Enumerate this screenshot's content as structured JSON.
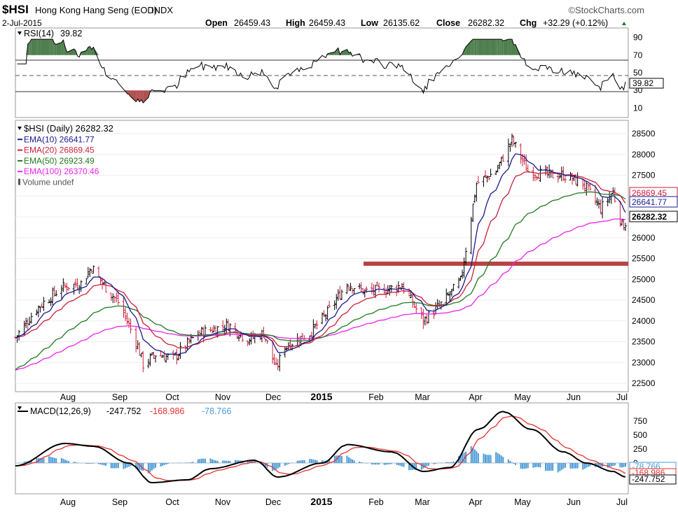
{
  "header": {
    "symbol": "$HSI",
    "name": "Hong Kong Hang Seng (EOD)",
    "exchange": "INDX",
    "brand": "©StockCharts.com",
    "date": "2-Jul-2015",
    "open_label": "Open",
    "open": "26459.43",
    "high_label": "High",
    "high": "26459.43",
    "low_label": "Low",
    "low": "26135.62",
    "close_label": "Close",
    "close": "26282.32",
    "chg_label": "Chg",
    "chg": "+32.29 (+0.12%)"
  },
  "rsi_panel": {
    "label": "RSI(14)",
    "value": "39.82",
    "ticks": [
      "90",
      "70",
      "50",
      "30",
      "10"
    ]
  },
  "price_panel": {
    "legend": [
      {
        "text": "$HSI (Daily) 26282.32",
        "color": "#000000"
      },
      {
        "text": "EMA(10) 26641.77",
        "color": "#1a1a8c"
      },
      {
        "text": "EMA(20) 26869.45",
        "color": "#cc1f3a"
      },
      {
        "text": "EMA(50) 26923.49",
        "color": "#1f7a1f"
      },
      {
        "text": "EMA(100) 26370.46",
        "color": "#ee22ee"
      },
      {
        "text": "Volume undef",
        "color": "#555555"
      }
    ],
    "y_ticks": [
      "28500",
      "28000",
      "27500",
      "27000",
      "26500",
      "26000",
      "25500",
      "25000",
      "24500",
      "24000",
      "23500",
      "23000",
      "22500"
    ],
    "tags": [
      {
        "text": "26869.45",
        "color": "#cc1f3a"
      },
      {
        "text": "26641.77",
        "color": "#1a1a8c"
      },
      {
        "text": "26282.32",
        "color": "#000000"
      }
    ]
  },
  "macd_panel": {
    "label_prefix": "MACD(12,26,9)",
    "macd": "-247.752",
    "signal": "-168.986",
    "hist": "-78.766",
    "y_ticks": [
      "750",
      "500",
      "250",
      "0"
    ],
    "tags": [
      {
        "text": "-78.766",
        "color": "#4a9ad8"
      },
      {
        "text": "-168.986",
        "color": "#e53030"
      },
      {
        "text": "-247.752",
        "color": "#000000"
      }
    ]
  },
  "x_axis_labels": [
    "Aug",
    "Sep",
    "Oct",
    "Nov",
    "Dec",
    "2015",
    "Feb",
    "Mar",
    "Apr",
    "May",
    "Jun",
    "Jul"
  ],
  "colors": {
    "ema10": "#1a1a8c",
    "ema20": "#cc1f3a",
    "ema50": "#1f7a1f",
    "ema100": "#ee22ee",
    "up": "#000000",
    "down": "#cc1f3a",
    "resistance": "#b03030",
    "rsi_fill": "#4f7f4f",
    "macd_hist": "#4a9ad8",
    "macd_line": "#000000",
    "signal_line": "#e53030"
  },
  "chart_data": {
    "type": "line",
    "title": "$HSI Hong Kong Hang Seng (EOD) INDX",
    "ylim": [
      22400,
      28700
    ],
    "y_scale": "linear",
    "x_labels": [
      "Aug",
      "Sep",
      "Oct",
      "Nov",
      "Dec",
      "2015",
      "Feb",
      "Mar",
      "Apr",
      "May",
      "Jun",
      "Jul"
    ],
    "close_series": {
      "name": "$HSI (Daily)",
      "points": [
        {
          "x": "2014-07-23",
          "y": 23600
        },
        {
          "x": "2014-08-04",
          "y": 24300
        },
        {
          "x": "2014-08-18",
          "y": 24800
        },
        {
          "x": "2014-08-29",
          "y": 24900
        },
        {
          "x": "2014-09-04",
          "y": 25300
        },
        {
          "x": "2014-09-10",
          "y": 24900
        },
        {
          "x": "2014-09-20",
          "y": 24400
        },
        {
          "x": "2014-09-30",
          "y": 23400
        },
        {
          "x": "2014-10-03",
          "y": 22950
        },
        {
          "x": "2014-10-10",
          "y": 23200
        },
        {
          "x": "2014-10-20",
          "y": 23100
        },
        {
          "x": "2014-11-03",
          "y": 23700
        },
        {
          "x": "2014-11-20",
          "y": 23900
        },
        {
          "x": "2014-12-01",
          "y": 23550
        },
        {
          "x": "2014-12-10",
          "y": 23700
        },
        {
          "x": "2014-12-17",
          "y": 22850
        },
        {
          "x": "2014-12-22",
          "y": 23400
        },
        {
          "x": "2015-01-05",
          "y": 23700
        },
        {
          "x": "2015-01-15",
          "y": 24200
        },
        {
          "x": "2015-01-26",
          "y": 24900
        },
        {
          "x": "2015-02-05",
          "y": 24700
        },
        {
          "x": "2015-02-16",
          "y": 24750
        },
        {
          "x": "2015-02-26",
          "y": 24850
        },
        {
          "x": "2015-03-10",
          "y": 24000
        },
        {
          "x": "2015-03-20",
          "y": 24400
        },
        {
          "x": "2015-03-31",
          "y": 24950
        },
        {
          "x": "2015-04-09",
          "y": 27300
        },
        {
          "x": "2015-04-20",
          "y": 27600
        },
        {
          "x": "2015-04-29",
          "y": 28350
        },
        {
          "x": "2015-05-08",
          "y": 27600
        },
        {
          "x": "2015-05-20",
          "y": 27500
        },
        {
          "x": "2015-05-28",
          "y": 27500
        },
        {
          "x": "2015-06-08",
          "y": 27300
        },
        {
          "x": "2015-06-18",
          "y": 26700
        },
        {
          "x": "2015-06-25",
          "y": 27100
        },
        {
          "x": "2015-06-30",
          "y": 26300
        },
        {
          "x": "2015-07-02",
          "y": 26282.32
        }
      ]
    },
    "series": [
      {
        "name": "EMA(10)",
        "last": 26641.77
      },
      {
        "name": "EMA(20)",
        "last": 26869.45
      },
      {
        "name": "EMA(50)",
        "last": 26923.49
      },
      {
        "name": "EMA(100)",
        "last": 26370.46
      }
    ],
    "resistance_level": 25200,
    "rsi": {
      "period": 14,
      "last": 39.82,
      "levels": [
        70,
        50,
        30
      ],
      "ylim": [
        0,
        100
      ]
    },
    "macd": {
      "params": "12,26,9",
      "macd": -247.752,
      "signal": -168.986,
      "histogram": -78.766,
      "macd_points": [
        {
          "x": "2014-07-23",
          "y": -50
        },
        {
          "x": "2014-08-20",
          "y": 350
        },
        {
          "x": "2014-09-05",
          "y": 300
        },
        {
          "x": "2014-09-25",
          "y": 0
        },
        {
          "x": "2014-10-08",
          "y": -350
        },
        {
          "x": "2014-10-28",
          "y": -300
        },
        {
          "x": "2014-11-10",
          "y": -100
        },
        {
          "x": "2014-12-05",
          "y": 50
        },
        {
          "x": "2014-12-18",
          "y": -250
        },
        {
          "x": "2015-01-12",
          "y": 0
        },
        {
          "x": "2015-01-26",
          "y": 330
        },
        {
          "x": "2015-02-20",
          "y": 200
        },
        {
          "x": "2015-03-10",
          "y": -150
        },
        {
          "x": "2015-03-25",
          "y": -80
        },
        {
          "x": "2015-04-10",
          "y": 600
        },
        {
          "x": "2015-04-24",
          "y": 920
        },
        {
          "x": "2015-05-10",
          "y": 600
        },
        {
          "x": "2015-05-28",
          "y": 200
        },
        {
          "x": "2015-06-10",
          "y": 0
        },
        {
          "x": "2015-06-25",
          "y": -150
        },
        {
          "x": "2015-07-02",
          "y": -247.752
        }
      ]
    },
    "ema_lines": {
      "ema10": [],
      "ema20": [],
      "ema50": [],
      "ema100": []
    }
  }
}
